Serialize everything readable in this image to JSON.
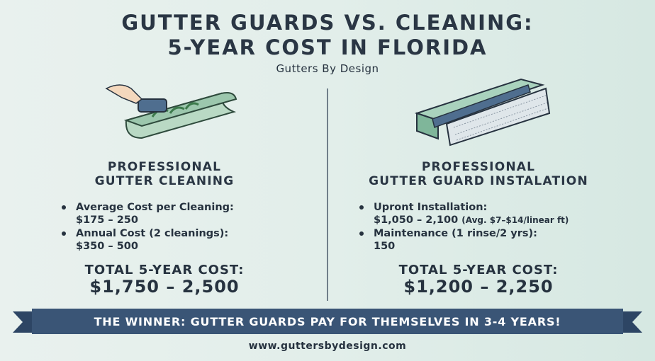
{
  "header": {
    "title_lines": [
      "GUTTER GUARDS VS. CLEANING:",
      "5-YEAR COST IN FLORIDA"
    ],
    "subtitle": "Gutters By Design"
  },
  "columns": [
    {
      "heading_lines": [
        "PROFESSIONAL",
        "GUTTER CLEANING"
      ],
      "items": [
        {
          "label": "Average Cost per Cleaning:",
          "value": "$175 – 250"
        },
        {
          "label": "Annual Cost (2 cleanings):",
          "value": "$350 – 500"
        }
      ],
      "total_label": "TOTAL 5-YEAR COST:",
      "total_value": "$1,750 – 2,500"
    },
    {
      "heading_lines": [
        "PROFESSIONAL",
        "GUTTER GUARD INSTALATION"
      ],
      "items": [
        {
          "label": "Upront Installation:",
          "value": "$1,050 – 2,100",
          "note": "(Avg. $7–$14/linear ft)"
        },
        {
          "label": "Maintenance (1 rinse/2 yrs):",
          "value": "150"
        }
      ],
      "total_label": "TOTAL 5-YEAR COST:",
      "total_value": "$1,200 – 2,250"
    }
  ],
  "banner": "THE WINNER: GUTTER GUARDS PAY FOR THEMSELVES IN 3-4 YEARS!",
  "footer": "www.guttersbydesign.com"
}
